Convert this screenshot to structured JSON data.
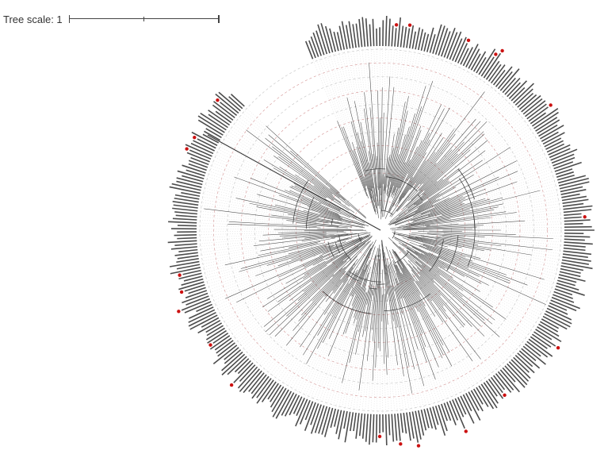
{
  "scale": {
    "label": "Tree scale: 1"
  },
  "tree": {
    "ring_count": 12,
    "leaf_count": 360,
    "marked_leaf_color": "#cc1111",
    "ring_color_a": "#d9a0a0",
    "ring_color_b": "#c9c9c9",
    "branch_color": "#333333",
    "label_color": "#111111"
  }
}
